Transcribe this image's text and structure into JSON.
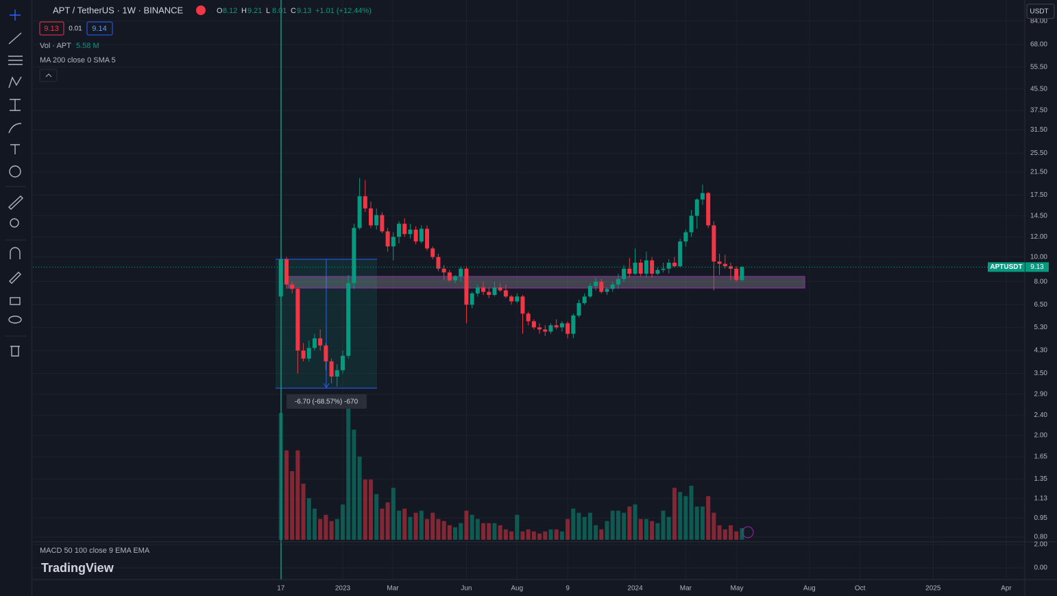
{
  "header": {
    "title": "APT / TetherUS · 1W · BINANCE",
    "ohlc": [
      {
        "label": "O",
        "value": 8.12
      },
      {
        "label": "H",
        "value": 9.21
      },
      {
        "label": "L",
        "value": 8.01
      },
      {
        "label": "C",
        "value": 9.13
      }
    ],
    "change": "+1.01 (+12.44%)",
    "bid": 9.13,
    "spread": 0.01,
    "ask": 9.14,
    "currency": "USDT",
    "volume_legend": "Vol · APT",
    "volume_value": "5.58 M",
    "ma_legend": "MA 200 close 0 SMA 5",
    "macd_legend": "MACD 50 100 close 9 EMA EMA",
    "logo": "TradingView",
    "measure_label": "-6.70 (-68.57%) -670"
  },
  "chart_data": {
    "type": "candlestick",
    "log_scale": true,
    "grid": true,
    "ylim": [
      0.78,
      101.6
    ],
    "yticks": [
      {
        "value": 84,
        "label": "84.00"
      },
      {
        "value": 68,
        "label": "68.00"
      },
      {
        "value": 55.5,
        "label": "55.50"
      },
      {
        "value": 45.5,
        "label": "45.50"
      },
      {
        "value": 37.5,
        "label": "37.50"
      },
      {
        "value": 31.5,
        "label": "31.50"
      },
      {
        "value": 25.5,
        "label": "25.50"
      },
      {
        "value": 21.5,
        "label": "21.50"
      },
      {
        "value": 17.5,
        "label": "17.50"
      },
      {
        "value": 14.5,
        "label": "14.50"
      },
      {
        "value": 12,
        "label": "12.00"
      },
      {
        "value": 10,
        "label": "10.00"
      },
      {
        "value": 8,
        "label": "8.00"
      },
      {
        "value": 6.5,
        "label": "6.50"
      },
      {
        "value": 5.3,
        "label": "5.30"
      },
      {
        "value": 4.3,
        "label": "4.30"
      },
      {
        "value": 3.5,
        "label": "3.50"
      },
      {
        "value": 2.9,
        "label": "2.90"
      },
      {
        "value": 2.4,
        "label": "2.40"
      },
      {
        "value": 2,
        "label": "2.00"
      },
      {
        "value": 1.65,
        "label": "1.65"
      },
      {
        "value": 1.35,
        "label": "1.35"
      },
      {
        "value": 1.13,
        "label": "1.13"
      },
      {
        "value": 0.95,
        "label": "0.95"
      },
      {
        "value": 0.8,
        "label": "0.80"
      }
    ],
    "xlim": [
      -44.1,
      132.3
    ],
    "xticks": [
      {
        "value": 0,
        "label": "17"
      },
      {
        "value": 11,
        "label": "2023"
      },
      {
        "value": 19.9,
        "label": "Mar"
      },
      {
        "value": 33,
        "label": "Jun"
      },
      {
        "value": 42,
        "label": "Aug"
      },
      {
        "value": 51,
        "label": "9"
      },
      {
        "value": 63,
        "label": "2024"
      },
      {
        "value": 72,
        "label": "Mar"
      },
      {
        "value": 81.1,
        "label": "May"
      },
      {
        "value": 94,
        "label": "Aug"
      },
      {
        "value": 103,
        "label": "Oct"
      },
      {
        "value": 116,
        "label": "2025"
      },
      {
        "value": 129,
        "label": "Apr"
      }
    ],
    "up_color": "#089981",
    "down_color": "#f23645",
    "open": [
      7.0,
      9.8,
      7.8,
      7.5,
      4.3,
      4.0,
      4.4,
      4.8,
      4.5,
      3.9,
      3.4,
      3.6,
      4.1,
      7.9,
      13.0,
      17.3,
      15.5,
      13.3,
      14.6,
      12.6,
      11.0,
      12.0,
      13.5,
      12.3,
      12.8,
      11.5,
      12.9,
      10.8,
      10.0,
      9.0,
      8.7,
      8.1,
      8.4,
      9.0,
      6.5,
      7.2,
      7.6,
      7.3,
      7.1,
      7.6,
      7.4,
      7.0,
      6.7,
      7.0,
      6.0,
      5.6,
      5.3,
      5.2,
      5.1,
      5.4,
      5.3,
      5.5,
      5.0,
      5.9,
      6.6,
      7.0,
      7.7,
      8.0,
      7.3,
      7.5,
      7.8,
      8.2,
      9.0,
      8.6,
      9.5,
      8.6,
      9.7,
      8.6,
      8.9,
      9.0,
      9.5,
      9.2,
      11.5,
      12.5,
      14.5,
      16.8,
      17.8,
      13.3,
      9.6,
      9.4,
      9.2,
      9.0,
      8.12
    ],
    "high": [
      10.0,
      10.0,
      8.0,
      7.6,
      4.6,
      4.7,
      5.0,
      5.2,
      4.6,
      4.0,
      3.8,
      4.3,
      8.5,
      13.5,
      20.4,
      20.0,
      16.5,
      15.5,
      15.0,
      13.0,
      12.5,
      13.8,
      14.2,
      13.5,
      13.2,
      13.3,
      13.3,
      11.0,
      10.3,
      9.3,
      8.9,
      8.5,
      9.2,
      9.2,
      7.3,
      7.8,
      8.0,
      7.6,
      8.0,
      7.9,
      7.8,
      7.1,
      7.2,
      7.1,
      6.1,
      5.7,
      5.5,
      5.4,
      5.5,
      5.7,
      5.6,
      5.6,
      6.0,
      6.8,
      7.2,
      7.9,
      8.3,
      8.2,
      7.6,
      8.0,
      8.6,
      9.3,
      9.9,
      10.8,
      9.8,
      10.5,
      10.0,
      9.1,
      9.5,
      9.8,
      10.0,
      11.8,
      12.8,
      15.3,
      17.0,
      19.2,
      18.0,
      13.8,
      10.3,
      10.2,
      9.5,
      9.2,
      9.21
    ],
    "low": [
      6.5,
      7.5,
      7.2,
      3.5,
      3.9,
      3.9,
      4.3,
      4.3,
      3.6,
      3.2,
      3.1,
      3.5,
      4.0,
      7.5,
      12.8,
      15.0,
      13.0,
      12.8,
      12.4,
      10.5,
      9.7,
      11.3,
      12.0,
      11.8,
      11.2,
      11.3,
      10.6,
      9.8,
      8.8,
      8.1,
      8.0,
      7.9,
      8.0,
      5.5,
      6.3,
      7.0,
      7.1,
      6.9,
      7.0,
      7.3,
      6.9,
      6.5,
      6.6,
      5.0,
      5.4,
      5.2,
      5.0,
      4.9,
      5.0,
      5.2,
      5.1,
      4.8,
      4.8,
      5.8,
      6.5,
      6.9,
      7.4,
      7.2,
      7.1,
      7.3,
      7.5,
      8.0,
      8.3,
      8.5,
      8.4,
      8.3,
      8.3,
      8.5,
      8.7,
      8.6,
      9.1,
      9.1,
      11.0,
      12.0,
      12.9,
      16.0,
      13.0,
      7.4,
      8.5,
      9.0,
      8.1,
      8.0,
      8.01
    ],
    "close": [
      9.8,
      7.8,
      7.5,
      4.3,
      4.0,
      4.4,
      4.8,
      4.5,
      3.9,
      3.4,
      3.6,
      4.1,
      7.9,
      13.0,
      17.3,
      15.5,
      13.3,
      14.6,
      12.6,
      11.0,
      12.0,
      13.5,
      12.3,
      12.8,
      11.5,
      12.9,
      10.8,
      10.0,
      9.0,
      8.7,
      8.1,
      8.4,
      9.0,
      6.5,
      7.2,
      7.6,
      7.3,
      7.1,
      7.6,
      7.4,
      7.0,
      6.7,
      7.0,
      6.0,
      5.6,
      5.3,
      5.2,
      5.1,
      5.4,
      5.3,
      5.5,
      5.0,
      5.9,
      6.6,
      7.0,
      7.7,
      8.0,
      7.3,
      7.5,
      7.8,
      8.2,
      9.0,
      8.6,
      9.5,
      8.6,
      9.7,
      8.6,
      8.9,
      9.0,
      9.5,
      9.2,
      11.5,
      12.5,
      14.5,
      16.8,
      17.8,
      13.3,
      9.6,
      9.4,
      9.2,
      9.0,
      8.12,
      9.13
    ],
    "volume": [
      61,
      43,
      33,
      43,
      27,
      20,
      15,
      10,
      12,
      9,
      10,
      17,
      65,
      53,
      40,
      29,
      29,
      22,
      15,
      18,
      25,
      14,
      15,
      11,
      13,
      14,
      10,
      13,
      10,
      9,
      7,
      6,
      8,
      14,
      12,
      10,
      8,
      8,
      8,
      7,
      5,
      4,
      12,
      4,
      5,
      4,
      3,
      4,
      5,
      5,
      4,
      10,
      15,
      13,
      11,
      13,
      7,
      5,
      9,
      14,
      14,
      13,
      16,
      17,
      10,
      10,
      9,
      8,
      14,
      11,
      25,
      23,
      21,
      26,
      16,
      16,
      21,
      13,
      7,
      5,
      7,
      4,
      5.58
    ],
    "volume_ylim": [
      0,
      66
    ],
    "last_price_label": "APTUSDT",
    "last_price": 9.13,
    "macd_ylim": [
      -1,
      2.24
    ],
    "macd_yticks": [
      {
        "value": 2,
        "label": "2.00"
      },
      {
        "value": 0,
        "label": "0.00"
      }
    ]
  }
}
